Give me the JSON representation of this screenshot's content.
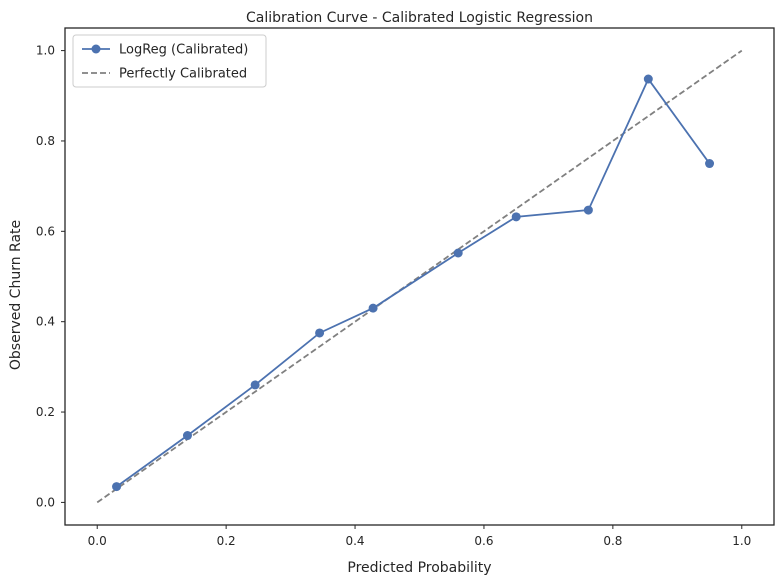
{
  "chart_data": {
    "type": "line",
    "title": "Calibration Curve - Calibrated Logistic Regression",
    "xlabel": "Predicted Probability",
    "ylabel": "Observed Churn Rate",
    "xlim": [
      -0.05,
      1.05
    ],
    "ylim": [
      -0.05,
      1.05
    ],
    "xticks": [
      0.0,
      0.2,
      0.4,
      0.6,
      0.8,
      1.0
    ],
    "yticks": [
      0.0,
      0.2,
      0.4,
      0.6,
      0.8,
      1.0
    ],
    "xtick_labels": [
      "0.0",
      "0.2",
      "0.4",
      "0.6",
      "0.8",
      "1.0"
    ],
    "ytick_labels": [
      "0.0",
      "0.2",
      "0.4",
      "0.6",
      "0.8",
      "1.0"
    ],
    "grid": false,
    "legend_position": "top-left",
    "series": [
      {
        "name": "LogReg (Calibrated)",
        "style": "solid",
        "marker": "circle",
        "color": "#4c72b0",
        "x": [
          0.03,
          0.14,
          0.245,
          0.345,
          0.428,
          0.56,
          0.65,
          0.762,
          0.855,
          0.95
        ],
        "y": [
          0.035,
          0.148,
          0.26,
          0.375,
          0.43,
          0.552,
          0.632,
          0.647,
          0.937,
          0.75
        ]
      },
      {
        "name": "Perfectly Calibrated",
        "style": "dashed",
        "marker": "none",
        "color": "#808080",
        "x": [
          0.0,
          1.0
        ],
        "y": [
          0.0,
          1.0
        ]
      }
    ]
  }
}
